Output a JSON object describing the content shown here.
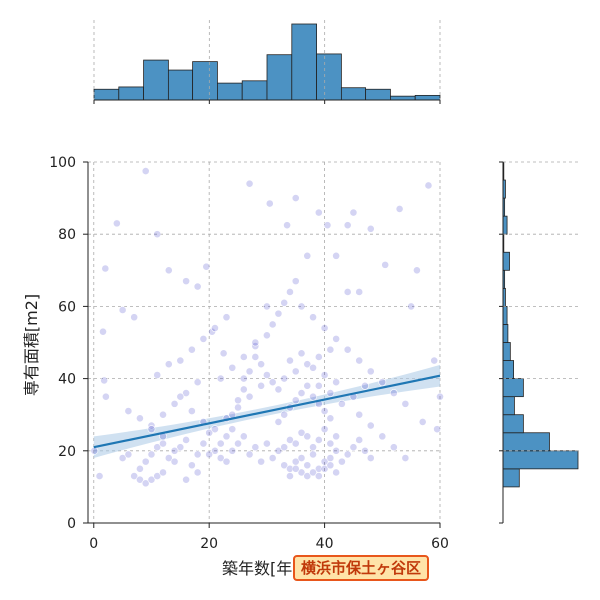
{
  "badge": {
    "text": "横浜市保土ヶ谷区"
  },
  "colors": {
    "scatter_point": "#3b3bc8",
    "regression_line": "#1f77b4",
    "confidence_band": "#a9c8e6",
    "histogram_fill": "#4c92c3",
    "badge_border": "#e8561b",
    "badge_fill": "#ffe3a8",
    "badge_text": "#c0390b"
  },
  "chart_data": {
    "type": "scatter",
    "title": "",
    "xlabel": "築年数[年]",
    "ylabel": "専有面積[m2]",
    "xlim": [
      -1,
      60
    ],
    "ylim": [
      0,
      100
    ],
    "x_ticks": [
      0,
      20,
      40,
      60
    ],
    "y_ticks": [
      0,
      20,
      40,
      60,
      80,
      100
    ],
    "grid": true,
    "regression": {
      "intercept": 21.0,
      "slope": 0.33,
      "x_range": [
        0,
        60
      ],
      "ci_halfwidth_center": 1.2,
      "ci_halfwidth_edge": 3.0
    },
    "marginal_x": {
      "type": "histogram",
      "bin_edges": [
        0,
        4.3,
        8.6,
        12.9,
        17.1,
        21.4,
        25.7,
        30,
        34.3,
        38.6,
        42.9,
        47.1,
        51.4,
        55.7,
        60
      ],
      "counts": [
        14,
        17,
        52,
        39,
        50,
        22,
        25,
        59,
        99,
        60,
        16,
        14,
        5,
        6
      ]
    },
    "marginal_y": {
      "type": "histogram",
      "bin_edges": [
        10,
        15,
        20,
        25,
        30,
        35,
        40,
        45,
        50,
        55,
        60,
        65,
        70,
        75,
        80,
        85,
        90,
        95,
        100
      ],
      "counts": [
        20,
        92,
        57,
        25,
        14,
        25,
        13,
        9,
        6,
        5,
        3,
        2,
        8,
        1,
        5,
        2,
        3,
        1
      ]
    },
    "points": [
      [
        0.1,
        20
      ],
      [
        1,
        13
      ],
      [
        2,
        70.5
      ],
      [
        1.6,
        53
      ],
      [
        1.8,
        39.5
      ],
      [
        2.1,
        35
      ],
      [
        4,
        83
      ],
      [
        5,
        59
      ],
      [
        7,
        57
      ],
      [
        9,
        97.5
      ],
      [
        11,
        80
      ],
      [
        13,
        70
      ],
      [
        16,
        67
      ],
      [
        18,
        65.5
      ],
      [
        19.5,
        71
      ],
      [
        20.5,
        53
      ],
      [
        22.5,
        47
      ],
      [
        27,
        94
      ],
      [
        30.5,
        88.5
      ],
      [
        33.5,
        82.5
      ],
      [
        35,
        90
      ],
      [
        37,
        74
      ],
      [
        39,
        86
      ],
      [
        40.5,
        82.5
      ],
      [
        42,
        74
      ],
      [
        44,
        82.5
      ],
      [
        45,
        86
      ],
      [
        48,
        81.5
      ],
      [
        50.5,
        71.5
      ],
      [
        53,
        87
      ],
      [
        56,
        70
      ],
      [
        58,
        93.5
      ],
      [
        55,
        60
      ],
      [
        59,
        45
      ],
      [
        59.5,
        26
      ],
      [
        57,
        28
      ],
      [
        60,
        35
      ],
      [
        5,
        18
      ],
      [
        6,
        19
      ],
      [
        7,
        13
      ],
      [
        8,
        12
      ],
      [
        9,
        11
      ],
      [
        10,
        12
      ],
      [
        11,
        13
      ],
      [
        12,
        14
      ],
      [
        8,
        15
      ],
      [
        9,
        17
      ],
      [
        10,
        19
      ],
      [
        11,
        21
      ],
      [
        12,
        22
      ],
      [
        13,
        18
      ],
      [
        14,
        17
      ],
      [
        15,
        21
      ],
      [
        16,
        23
      ],
      [
        17,
        16
      ],
      [
        18,
        19
      ],
      [
        19,
        22
      ],
      [
        20,
        25
      ],
      [
        21,
        20
      ],
      [
        22,
        18
      ],
      [
        23,
        17
      ],
      [
        24,
        20
      ],
      [
        25,
        22
      ],
      [
        26,
        24
      ],
      [
        27,
        19
      ],
      [
        28,
        21
      ],
      [
        29,
        17
      ],
      [
        30,
        22
      ],
      [
        31,
        18
      ],
      [
        32,
        20
      ],
      [
        33,
        16
      ],
      [
        34,
        15
      ],
      [
        35,
        17
      ],
      [
        36,
        18
      ],
      [
        37,
        16
      ],
      [
        38,
        19
      ],
      [
        39,
        15
      ],
      [
        40,
        17
      ],
      [
        41,
        18
      ],
      [
        42,
        20
      ],
      [
        33,
        21
      ],
      [
        34,
        23
      ],
      [
        35,
        22
      ],
      [
        36,
        25
      ],
      [
        37,
        24
      ],
      [
        38,
        21
      ],
      [
        39,
        23
      ],
      [
        40,
        26
      ],
      [
        41,
        22
      ],
      [
        42,
        24
      ],
      [
        32,
        28
      ],
      [
        33,
        30
      ],
      [
        34,
        32
      ],
      [
        35,
        34
      ],
      [
        36,
        36
      ],
      [
        37,
        38
      ],
      [
        38,
        35
      ],
      [
        39,
        33
      ],
      [
        40,
        31
      ],
      [
        41,
        29
      ],
      [
        33,
        40
      ],
      [
        35,
        42
      ],
      [
        37,
        44
      ],
      [
        39,
        46
      ],
      [
        41,
        48
      ],
      [
        34,
        45
      ],
      [
        36,
        47
      ],
      [
        38,
        43
      ],
      [
        40,
        41
      ],
      [
        42,
        39
      ],
      [
        10,
        27
      ],
      [
        12,
        30
      ],
      [
        14,
        33
      ],
      [
        16,
        36
      ],
      [
        18,
        39
      ],
      [
        11,
        41
      ],
      [
        13,
        44
      ],
      [
        15,
        35
      ],
      [
        17,
        31
      ],
      [
        19,
        28
      ],
      [
        21,
        26
      ],
      [
        23,
        29
      ],
      [
        25,
        32
      ],
      [
        27,
        35
      ],
      [
        29,
        38
      ],
      [
        22,
        40
      ],
      [
        24,
        43
      ],
      [
        26,
        46
      ],
      [
        28,
        49
      ],
      [
        30,
        52
      ],
      [
        31,
        55
      ],
      [
        32,
        58
      ],
      [
        33,
        61
      ],
      [
        34,
        64
      ],
      [
        35,
        67
      ],
      [
        36,
        60
      ],
      [
        38,
        57
      ],
      [
        40,
        54
      ],
      [
        42,
        51
      ],
      [
        44,
        48
      ],
      [
        46,
        45
      ],
      [
        48,
        42
      ],
      [
        50,
        39
      ],
      [
        52,
        36
      ],
      [
        54,
        33
      ],
      [
        46,
        30
      ],
      [
        48,
        27
      ],
      [
        50,
        24
      ],
      [
        52,
        21
      ],
      [
        54,
        18
      ],
      [
        44,
        64
      ],
      [
        46,
        64
      ],
      [
        30,
        60
      ],
      [
        28,
        50
      ],
      [
        26,
        40
      ],
      [
        24,
        30
      ],
      [
        22,
        22
      ],
      [
        20,
        19
      ],
      [
        18,
        14
      ],
      [
        16,
        12
      ],
      [
        14,
        20
      ],
      [
        12,
        24
      ],
      [
        10,
        26
      ],
      [
        8,
        29
      ],
      [
        6,
        31
      ],
      [
        15,
        45
      ],
      [
        17,
        48
      ],
      [
        19,
        51
      ],
      [
        21,
        54
      ],
      [
        23,
        57
      ],
      [
        30,
        41
      ],
      [
        31,
        39
      ],
      [
        32,
        37
      ],
      [
        29,
        44
      ],
      [
        28,
        46
      ],
      [
        27,
        42
      ],
      [
        26,
        37
      ],
      [
        25,
        34
      ],
      [
        24,
        26
      ],
      [
        23,
        24
      ],
      [
        36,
        14
      ],
      [
        37,
        13
      ],
      [
        38,
        14
      ],
      [
        35,
        15
      ],
      [
        34,
        13
      ],
      [
        39,
        13
      ],
      [
        40,
        15
      ],
      [
        41,
        16
      ],
      [
        42,
        14
      ],
      [
        43,
        17
      ],
      [
        44,
        19
      ],
      [
        45,
        21
      ],
      [
        46,
        23
      ],
      [
        47,
        20
      ],
      [
        48,
        18
      ],
      [
        47,
        38
      ],
      [
        45,
        35
      ],
      [
        43,
        33
      ],
      [
        41,
        36
      ],
      [
        39,
        38
      ]
    ]
  }
}
